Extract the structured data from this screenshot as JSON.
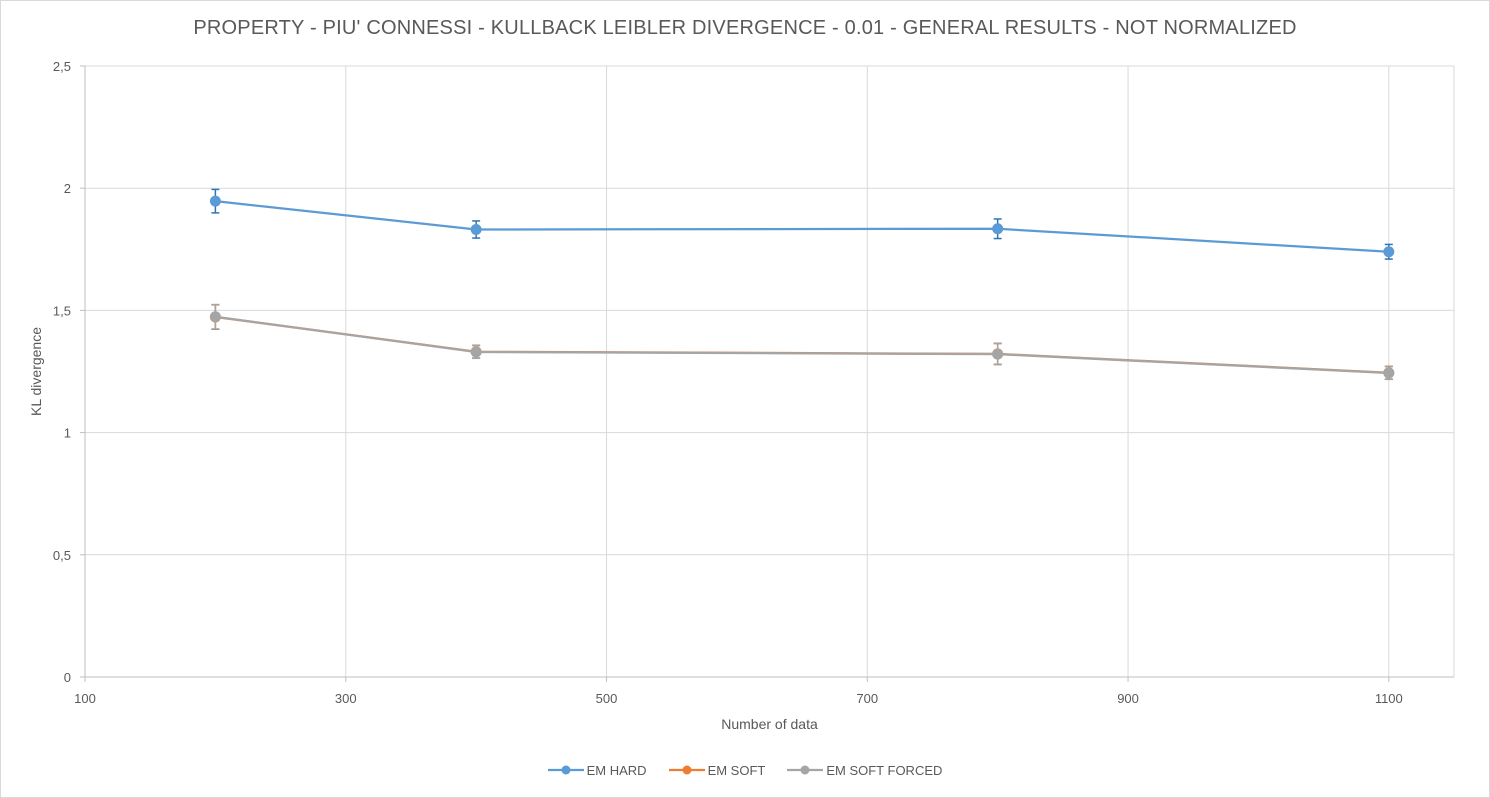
{
  "chart_data": {
    "type": "line",
    "title": "PROPERTY - PIU' CONNESSI  - KULLBACK LEIBLER DIVERGENCE - 0.01 - GENERAL RESULTS - NOT NORMALIZED",
    "xlabel": "Number of data",
    "ylabel": "KL divergence",
    "xlim": [
      100,
      1150
    ],
    "ylim": [
      0,
      2.5
    ],
    "x_ticks": [
      100,
      300,
      500,
      700,
      900,
      1100
    ],
    "x_tick_labels": [
      "100",
      "300",
      "500",
      "700",
      "900",
      "1100"
    ],
    "y_ticks": [
      0,
      0.5,
      1,
      1.5,
      2,
      2.5
    ],
    "y_tick_labels": [
      "0",
      "0,5",
      "1",
      "1,5",
      "2",
      "2,5"
    ],
    "grid": true,
    "legend_position": "bottom",
    "x": [
      200,
      400,
      800,
      1100
    ],
    "series": [
      {
        "name": "EM HARD",
        "color": "#5b9bd5",
        "error_color": "#2e75b6",
        "values": [
          1.947,
          1.831,
          1.834,
          1.74
        ],
        "errors": [
          0.048,
          0.035,
          0.04,
          0.03
        ]
      },
      {
        "name": "EM SOFT",
        "color": "#ed7d31",
        "error_color": "#c55a11",
        "values": [
          1.473,
          1.331,
          1.322,
          1.245
        ],
        "errors": [
          0.05,
          0.026,
          0.043,
          0.026
        ]
      },
      {
        "name": "EM SOFT FORCED",
        "color": "#a5a5a5",
        "error_color": "#a5a5a5",
        "values": [
          1.474,
          1.33,
          1.321,
          1.244
        ],
        "errors": [
          0.05,
          0.026,
          0.043,
          0.026
        ]
      }
    ]
  }
}
